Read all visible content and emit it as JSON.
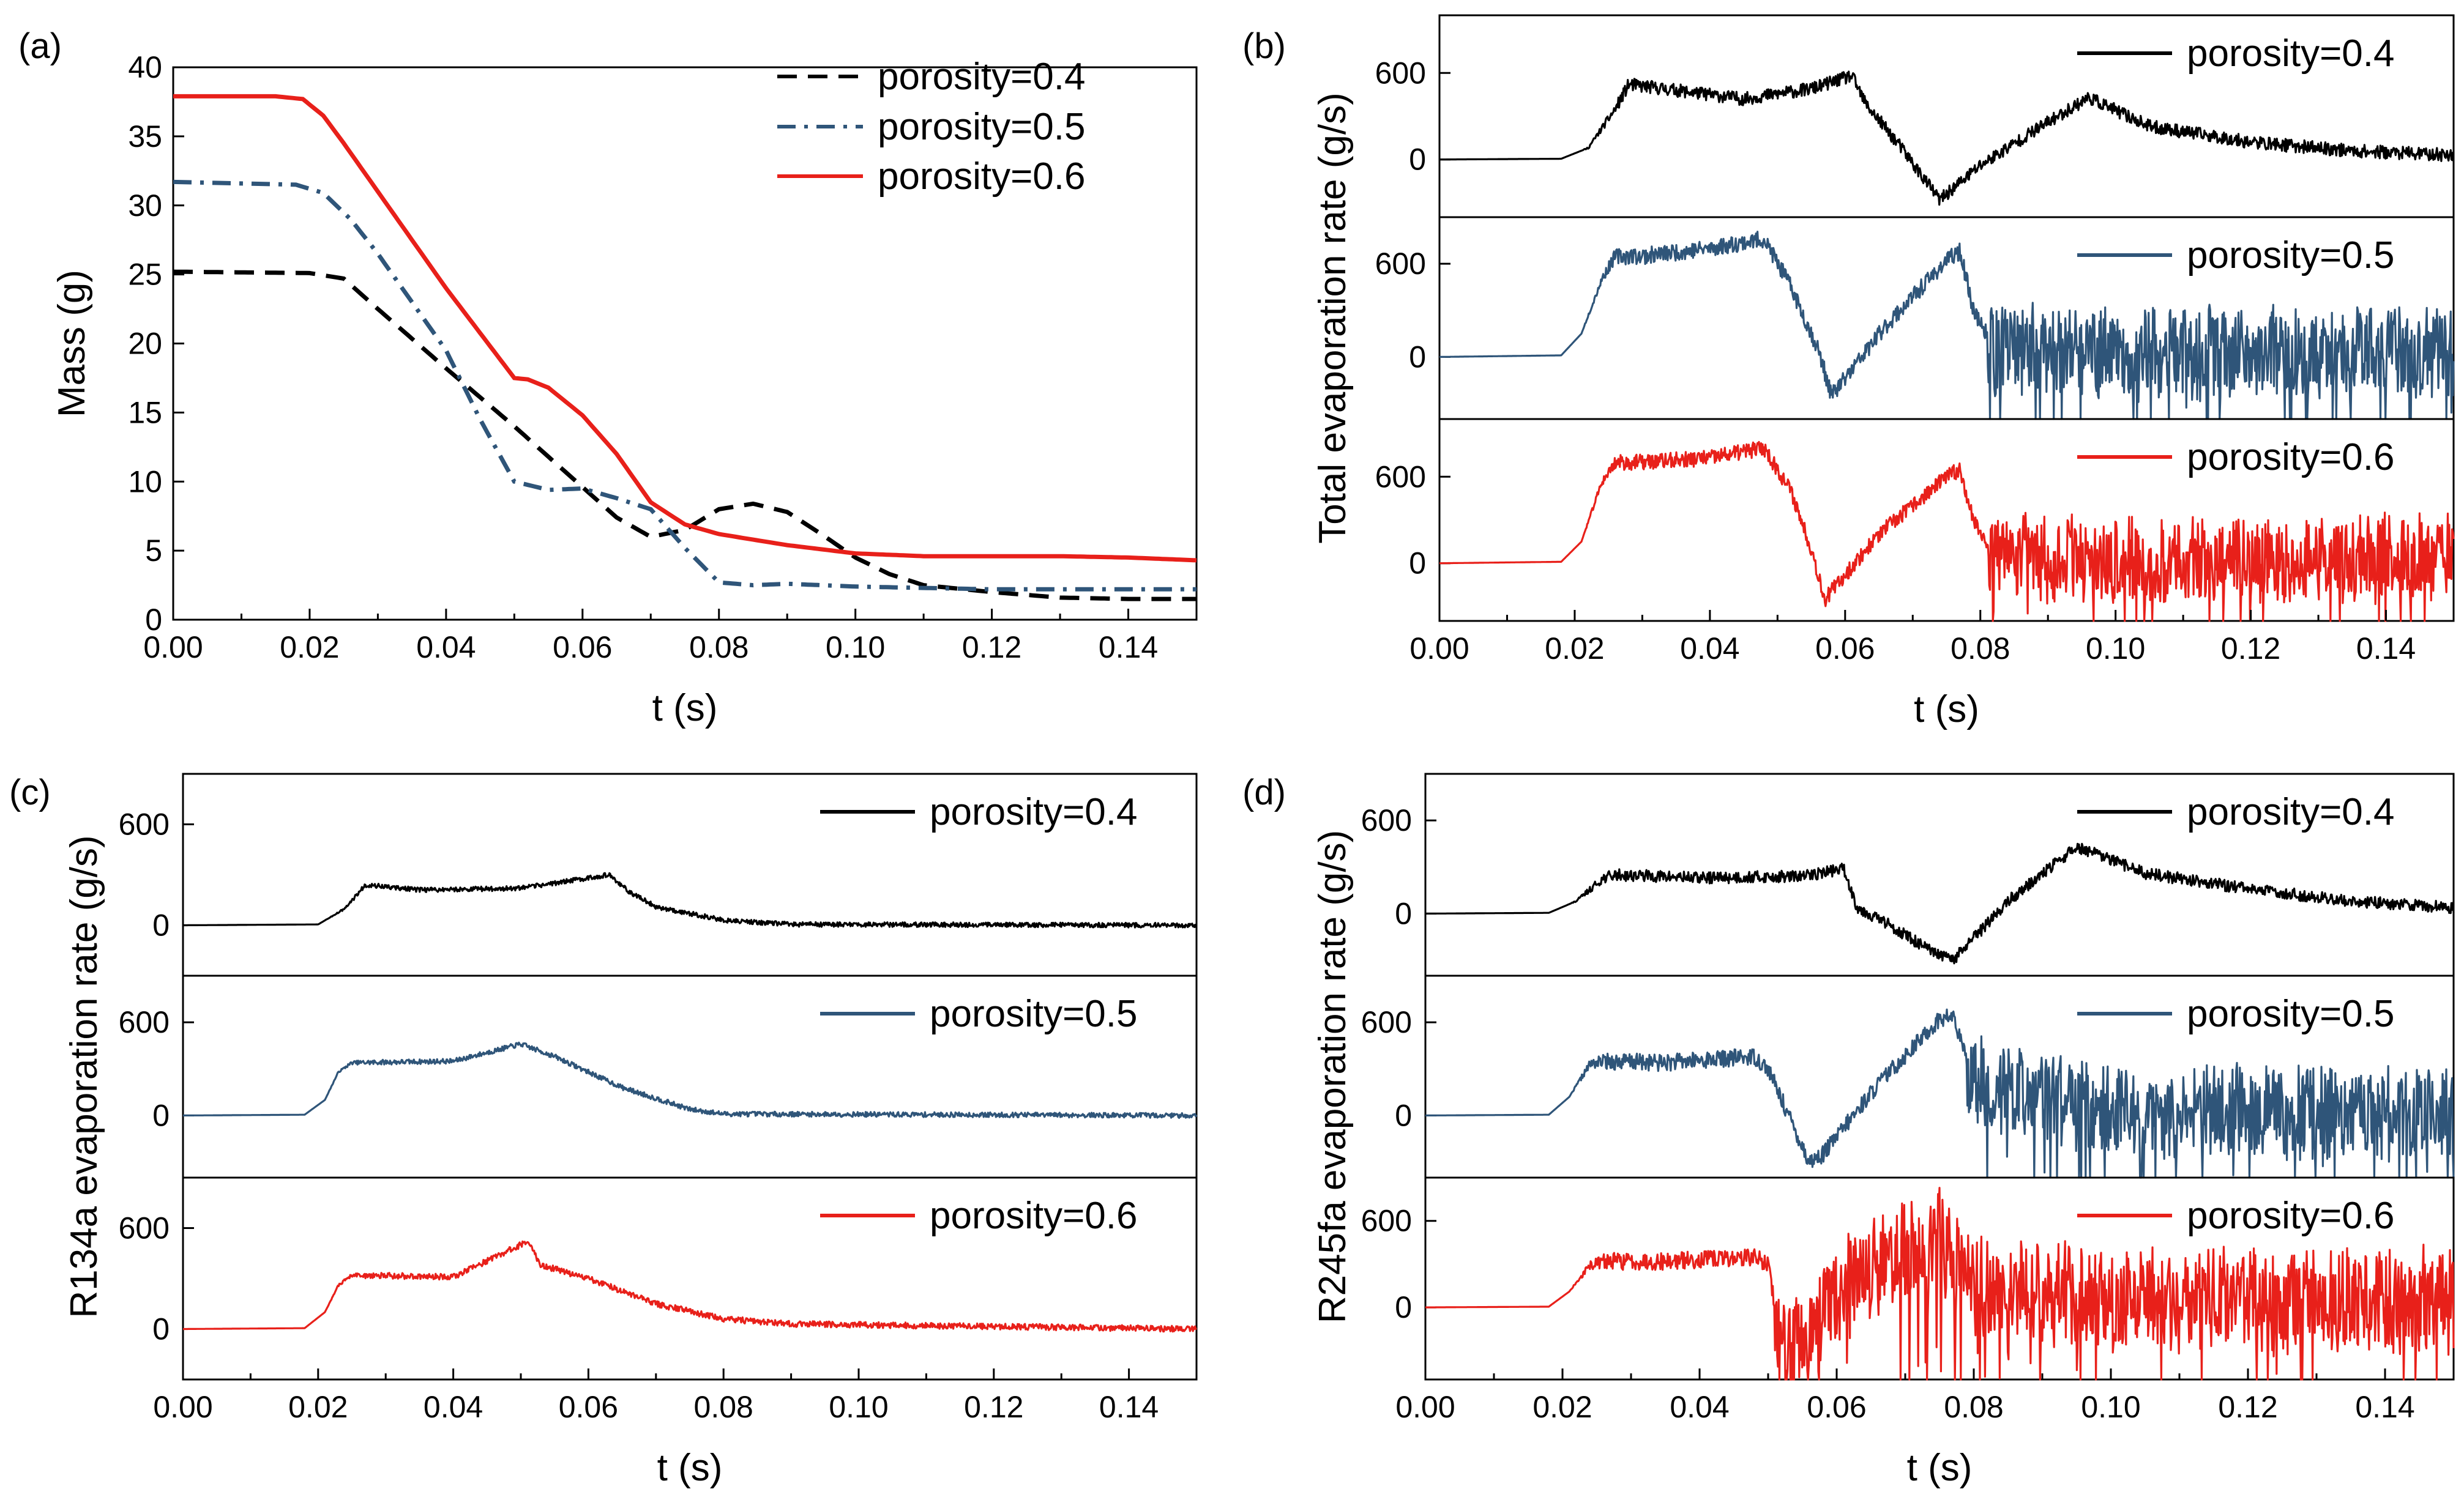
{
  "chart_data": [
    {
      "panel": "(a)",
      "type": "line",
      "xlabel": "t (s)",
      "ylabel": "Mass (g)",
      "xlim": [
        0,
        0.15
      ],
      "ylim": [
        0,
        40
      ],
      "xticks": [
        "0.00",
        "0.02",
        "0.04",
        "0.06",
        "0.08",
        "0.10",
        "0.12",
        "0.14"
      ],
      "yticks": [
        "0",
        "5",
        "10",
        "15",
        "20",
        "25",
        "30",
        "35",
        "40"
      ],
      "legend_position": "top-right",
      "series": [
        {
          "name": "porosity=0.4",
          "style": "dashed",
          "color": "#000000",
          "x": [
            0,
            0.02,
            0.025,
            0.03,
            0.04,
            0.05,
            0.06,
            0.065,
            0.07,
            0.075,
            0.08,
            0.085,
            0.09,
            0.095,
            0.1,
            0.105,
            0.11,
            0.12,
            0.13,
            0.14,
            0.15
          ],
          "y": [
            25.2,
            25.1,
            24.7,
            22.5,
            18.2,
            14.0,
            9.6,
            7.4,
            6.0,
            6.5,
            8.0,
            8.4,
            7.8,
            6.2,
            4.5,
            3.3,
            2.5,
            2.0,
            1.6,
            1.5,
            1.5
          ]
        },
        {
          "name": "porosity=0.5",
          "style": "dash-dot",
          "color": "#2f5579",
          "x": [
            0,
            0.018,
            0.022,
            0.026,
            0.03,
            0.04,
            0.045,
            0.05,
            0.055,
            0.06,
            0.065,
            0.07,
            0.075,
            0.08,
            0.085,
            0.09,
            0.1,
            0.12,
            0.15
          ],
          "y": [
            31.7,
            31.5,
            30.9,
            29.0,
            26.5,
            19.5,
            14.5,
            10.0,
            9.4,
            9.5,
            8.8,
            8.0,
            5.2,
            2.7,
            2.5,
            2.6,
            2.4,
            2.2,
            2.2
          ]
        },
        {
          "name": "porosity=0.6",
          "style": "solid",
          "color": "#e8201a",
          "x": [
            0,
            0.015,
            0.019,
            0.022,
            0.025,
            0.03,
            0.04,
            0.05,
            0.052,
            0.055,
            0.06,
            0.065,
            0.07,
            0.075,
            0.08,
            0.085,
            0.09,
            0.095,
            0.1,
            0.11,
            0.12,
            0.13,
            0.14,
            0.15
          ],
          "y": [
            37.9,
            37.9,
            37.7,
            36.5,
            34.5,
            31.0,
            24.0,
            17.5,
            17.4,
            16.8,
            14.8,
            12.0,
            8.5,
            6.9,
            6.2,
            5.8,
            5.4,
            5.1,
            4.8,
            4.6,
            4.6,
            4.6,
            4.5,
            4.3
          ]
        }
      ]
    },
    {
      "panel": "(b)",
      "type": "line",
      "xlabel": "t (s)",
      "ylabel": "Total evaporation rate   (g/s)",
      "xlim": [
        0,
        0.15
      ],
      "xticks": [
        "0.00",
        "0.02",
        "0.04",
        "0.06",
        "0.08",
        "0.10",
        "0.12",
        "0.14"
      ],
      "yticks": [
        "0",
        "600"
      ],
      "subplots": [
        {
          "name": "porosity=0.4",
          "color": "#000000",
          "ylim": [
            -400,
            1000
          ],
          "noise": 45,
          "seed": 11,
          "x": [
            0,
            0.018,
            0.022,
            0.026,
            0.028,
            0.035,
            0.045,
            0.055,
            0.061,
            0.063,
            0.068,
            0.074,
            0.08,
            0.088,
            0.096,
            0.105,
            0.12,
            0.135,
            0.15
          ],
          "y": [
            0,
            5,
            80,
            350,
            520,
            480,
            420,
            490,
            580,
            390,
            100,
            -280,
            -40,
            200,
            430,
            230,
            120,
            60,
            30
          ]
        },
        {
          "name": "porosity=0.5",
          "color": "#2f5579",
          "ylim": [
            -400,
            900
          ],
          "noise": 55,
          "seed": 23,
          "x": [
            0,
            0.018,
            0.021,
            0.024,
            0.026,
            0.03,
            0.04,
            0.048,
            0.052,
            0.056,
            0.058,
            0.066,
            0.075,
            0.077,
            0.079,
            0.082,
            0.1,
            0.15
          ],
          "y": [
            0,
            10,
            150,
            500,
            650,
            650,
            700,
            760,
            450,
            50,
            -250,
            200,
            620,
            680,
            300,
            60,
            30,
            30
          ],
          "spike_after": 0.081,
          "spike_amp": 280
        },
        {
          "name": "porosity=0.6",
          "color": "#e8201a",
          "ylim": [
            -400,
            1000
          ],
          "noise": 55,
          "seed": 37,
          "x": [
            0,
            0.018,
            0.021,
            0.024,
            0.026,
            0.03,
            0.04,
            0.048,
            0.052,
            0.055,
            0.057,
            0.065,
            0.075,
            0.077,
            0.079,
            0.082,
            0.1,
            0.15
          ],
          "y": [
            0,
            10,
            150,
            560,
            700,
            700,
            730,
            800,
            500,
            100,
            -250,
            200,
            600,
            650,
            300,
            50,
            30,
            30
          ],
          "spike_after": 0.081,
          "spike_amp": 280
        }
      ]
    },
    {
      "panel": "(c)",
      "type": "line",
      "xlabel": "t (s)",
      "ylabel": "R134a evaporation rate   (g/s)",
      "xlim": [
        0,
        0.15
      ],
      "xticks": [
        "0.00",
        "0.02",
        "0.04",
        "0.06",
        "0.08",
        "0.10",
        "0.12",
        "0.14"
      ],
      "yticks": [
        "0",
        "600"
      ],
      "subplots": [
        {
          "name": "porosity=0.4",
          "color": "#000000",
          "ylim": [
            -300,
            900
          ],
          "noise": 14,
          "seed": 5,
          "x": [
            0,
            0.02,
            0.024,
            0.027,
            0.035,
            0.05,
            0.063,
            0.066,
            0.07,
            0.08,
            0.09,
            0.15
          ],
          "y": [
            0,
            5,
            100,
            240,
            210,
            220,
            300,
            200,
            110,
            30,
            5,
            0
          ]
        },
        {
          "name": "porosity=0.5",
          "color": "#2f5579",
          "ylim": [
            -400,
            900
          ],
          "noise": 16,
          "seed": 7,
          "x": [
            0,
            0.018,
            0.021,
            0.023,
            0.025,
            0.04,
            0.05,
            0.055,
            0.065,
            0.075,
            0.08,
            0.15
          ],
          "y": [
            0,
            5,
            100,
            280,
            340,
            350,
            460,
            380,
            180,
            40,
            10,
            0
          ]
        },
        {
          "name": "porosity=0.6",
          "color": "#e8201a",
          "ylim": [
            -300,
            900
          ],
          "noise": 18,
          "seed": 9,
          "x": [
            0,
            0.018,
            0.021,
            0.023,
            0.025,
            0.04,
            0.051,
            0.053,
            0.06,
            0.07,
            0.08,
            0.09,
            0.15
          ],
          "y": [
            0,
            5,
            100,
            260,
            320,
            310,
            520,
            380,
            300,
            150,
            60,
            30,
            0
          ]
        }
      ]
    },
    {
      "panel": "(d)",
      "type": "line",
      "xlabel": "t (s)",
      "ylabel": "R245fa evaporation rate   (g/s)",
      "xlim": [
        0,
        0.15
      ],
      "xticks": [
        "0.00",
        "0.02",
        "0.04",
        "0.06",
        "0.08",
        "0.10",
        "0.12",
        "0.14"
      ],
      "yticks": [
        "0",
        "600"
      ],
      "subplots": [
        {
          "name": "porosity=0.4",
          "color": "#000000",
          "ylim": [
            -400,
            900
          ],
          "noise": 38,
          "seed": 13,
          "x": [
            0,
            0.018,
            0.022,
            0.026,
            0.028,
            0.04,
            0.055,
            0.061,
            0.063,
            0.068,
            0.074,
            0.077,
            0.085,
            0.095,
            0.105,
            0.12,
            0.135,
            0.15
          ],
          "y": [
            0,
            5,
            80,
            230,
            250,
            230,
            240,
            290,
            40,
            -80,
            -250,
            -300,
            80,
            430,
            260,
            160,
            80,
            40
          ]
        },
        {
          "name": "porosity=0.5",
          "color": "#2f5579",
          "ylim": [
            -400,
            900
          ],
          "noise": 55,
          "seed": 17,
          "x": [
            0,
            0.018,
            0.021,
            0.024,
            0.026,
            0.035,
            0.048,
            0.05,
            0.053,
            0.056,
            0.058,
            0.066,
            0.075,
            0.077,
            0.08,
            0.1,
            0.15
          ],
          "y": [
            0,
            5,
            120,
            330,
            350,
            340,
            380,
            300,
            0,
            -300,
            -250,
            200,
            620,
            640,
            200,
            30,
            30
          ],
          "spike_after": 0.079,
          "spike_amp": 280
        },
        {
          "name": "porosity=0.6",
          "color": "#e8201a",
          "ylim": [
            -500,
            900
          ],
          "noise": 60,
          "seed": 29,
          "x": [
            0,
            0.018,
            0.021,
            0.024,
            0.026,
            0.035,
            0.048,
            0.05,
            0.051,
            0.052,
            0.06,
            0.07,
            0.075,
            0.08,
            0.1,
            0.15
          ],
          "y": [
            0,
            5,
            110,
            290,
            320,
            320,
            350,
            300,
            0,
            -350,
            100,
            400,
            450,
            150,
            50,
            50
          ],
          "spike_after": 0.051,
          "spike_amp": 340
        }
      ]
    }
  ],
  "legend_labels": [
    "porosity=0.4",
    "porosity=0.5",
    "porosity=0.6"
  ]
}
